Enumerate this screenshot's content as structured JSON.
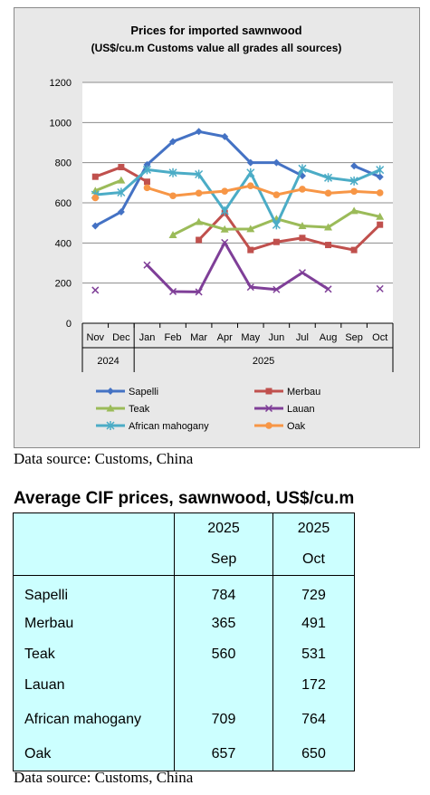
{
  "chart_data": {
    "type": "line",
    "title": "Prices for imported sawnwood",
    "subtitle": "(US$/cu.m Customs value all grades all sources)",
    "categories": [
      "Nov",
      "Dec",
      "Jan",
      "Feb",
      "Mar",
      "Apr",
      "May",
      "Jun",
      "Jul",
      "Aug",
      "Sep",
      "Oct"
    ],
    "category_groups": [
      {
        "label": "2024",
        "span": 2
      },
      {
        "label": "2025",
        "span": 10
      }
    ],
    "ylim": [
      0,
      1200
    ],
    "yticks": [
      0,
      200,
      400,
      600,
      800,
      1000,
      1200
    ],
    "grid": true,
    "legend_position": "bottom",
    "series": [
      {
        "name": "Sapelli",
        "color": "#4472c4",
        "marker": "diamond",
        "values": [
          485,
          555,
          790,
          905,
          955,
          930,
          800,
          800,
          735,
          null,
          784,
          729
        ]
      },
      {
        "name": "Merbau",
        "color": "#c0504d",
        "marker": "square",
        "values": [
          730,
          778,
          705,
          null,
          415,
          550,
          365,
          405,
          425,
          390,
          365,
          491
        ]
      },
      {
        "name": "Teak",
        "color": "#9bbb59",
        "marker": "triangle",
        "values": [
          660,
          712,
          null,
          440,
          505,
          468,
          470,
          520,
          485,
          478,
          560,
          531
        ]
      },
      {
        "name": "Lauan",
        "color": "#7f3f98",
        "marker": "x",
        "values": [
          165,
          null,
          290,
          158,
          156,
          402,
          180,
          168,
          252,
          170,
          null,
          172
        ]
      },
      {
        "name": "African mahogany",
        "color": "#4bacc6",
        "marker": "star",
        "values": [
          640,
          652,
          765,
          750,
          742,
          560,
          750,
          490,
          770,
          725,
          709,
          764
        ]
      },
      {
        "name": "Oak",
        "color": "#f79646",
        "marker": "circle",
        "values": [
          625,
          null,
          675,
          635,
          648,
          658,
          685,
          640,
          668,
          648,
          657,
          650
        ]
      }
    ]
  },
  "source_note_chart": "Data source: Customs, China",
  "table": {
    "title": "Average CIF prices, sawnwood, US$/cu.m",
    "header": {
      "col1_year": "2025",
      "col1_month": "Sep",
      "col2_year": "2025",
      "col2_month": "Oct"
    },
    "rows": [
      {
        "name": "Sapelli",
        "sep": "784",
        "oct": "729"
      },
      {
        "name": "Merbau",
        "sep": "365",
        "oct": "491"
      },
      {
        "name": "Teak",
        "sep": "560",
        "oct": "531"
      },
      {
        "name": "Lauan",
        "sep": "",
        "oct": "172"
      },
      {
        "name": "African mahogany",
        "sep": "709",
        "oct": "764"
      },
      {
        "name": "Oak",
        "sep": "657",
        "oct": "650"
      }
    ]
  },
  "source_note_table": "Data source: Customs, China"
}
